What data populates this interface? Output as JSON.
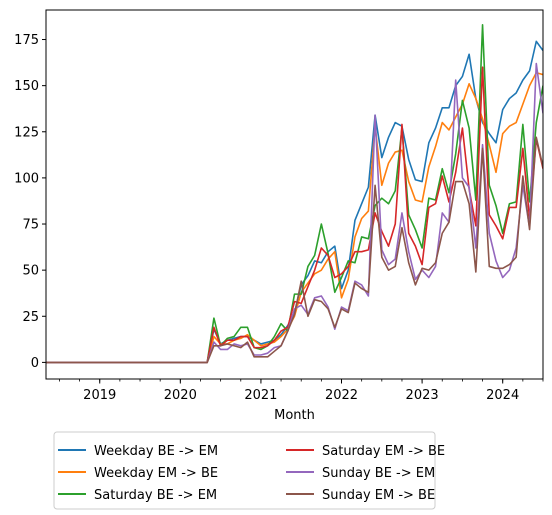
{
  "chart_data": {
    "type": "line",
    "xlabel": "Month",
    "ylabel": "",
    "title": "",
    "xlim": [
      "2018-05",
      "2024-07"
    ],
    "ylim": [
      -9,
      191
    ],
    "x_ticks": [
      "2019",
      "2020",
      "2021",
      "2022",
      "2023",
      "2024"
    ],
    "y_ticks": [
      0,
      25,
      50,
      75,
      100,
      125,
      150,
      175
    ],
    "grid": false,
    "legend_position": "below the plot, two columns",
    "x": [
      "2018-05",
      "2018-06",
      "2018-07",
      "2018-08",
      "2018-09",
      "2018-10",
      "2018-11",
      "2018-12",
      "2019-01",
      "2019-02",
      "2019-03",
      "2019-04",
      "2019-05",
      "2019-06",
      "2019-07",
      "2019-08",
      "2019-09",
      "2019-10",
      "2019-11",
      "2019-12",
      "2020-01",
      "2020-02",
      "2020-03",
      "2020-04",
      "2020-05",
      "2020-06",
      "2020-07",
      "2020-08",
      "2020-09",
      "2020-10",
      "2020-11",
      "2020-12",
      "2021-01",
      "2021-02",
      "2021-03",
      "2021-04",
      "2021-05",
      "2021-06",
      "2021-07",
      "2021-08",
      "2021-09",
      "2021-10",
      "2021-11",
      "2021-12",
      "2022-01",
      "2022-02",
      "2022-03",
      "2022-04",
      "2022-05",
      "2022-06",
      "2022-07",
      "2022-08",
      "2022-09",
      "2022-10",
      "2022-11",
      "2022-12",
      "2023-01",
      "2023-02",
      "2023-03",
      "2023-04",
      "2023-05",
      "2023-06",
      "2023-07",
      "2023-08",
      "2023-09",
      "2023-10",
      "2023-11",
      "2023-12",
      "2024-01",
      "2024-02",
      "2024-03",
      "2024-04",
      "2024-05",
      "2024-06",
      "2024-07"
    ],
    "series": [
      {
        "name": "Weekday BE -> EM",
        "color": "#1f77b4",
        "values": [
          0,
          0,
          0,
          0,
          0,
          0,
          0,
          0,
          0,
          0,
          0,
          0,
          0,
          0,
          0,
          0,
          0,
          0,
          0,
          0,
          0,
          0,
          0,
          0,
          0,
          18,
          10,
          12,
          13,
          14,
          14,
          12,
          10,
          11,
          12,
          15,
          20,
          27,
          42,
          47,
          55,
          54,
          60,
          63,
          40,
          50,
          77,
          86,
          95,
          134,
          111,
          122,
          130,
          128,
          110,
          99,
          98,
          119,
          127,
          138,
          138,
          150,
          155,
          167,
          143,
          130,
          124,
          119,
          137,
          143,
          146,
          153,
          158,
          174,
          169
        ]
      },
      {
        "name": "Weekday EM -> BE",
        "color": "#ff7f0e",
        "values": [
          0,
          0,
          0,
          0,
          0,
          0,
          0,
          0,
          0,
          0,
          0,
          0,
          0,
          0,
          0,
          0,
          0,
          0,
          0,
          0,
          0,
          0,
          0,
          0,
          0,
          14,
          10,
          10,
          12,
          13,
          15,
          12,
          9,
          10,
          11,
          14,
          18,
          25,
          38,
          43,
          48,
          50,
          56,
          60,
          35,
          45,
          68,
          78,
          82,
          128,
          96,
          108,
          114,
          115,
          98,
          88,
          87,
          106,
          117,
          130,
          126,
          133,
          140,
          151,
          143,
          132,
          118,
          103,
          124,
          128,
          130,
          140,
          150,
          157,
          156
        ]
      },
      {
        "name": "Saturday BE -> EM",
        "color": "#2ca02c",
        "values": [
          0,
          0,
          0,
          0,
          0,
          0,
          0,
          0,
          0,
          0,
          0,
          0,
          0,
          0,
          0,
          0,
          0,
          0,
          0,
          0,
          0,
          0,
          0,
          0,
          0,
          24,
          9,
          13,
          14,
          19,
          19,
          8,
          7,
          9,
          14,
          21,
          17,
          37,
          37,
          52,
          58,
          75,
          59,
          38,
          46,
          55,
          54,
          68,
          67,
          85,
          89,
          86,
          93,
          127,
          80,
          72,
          62,
          89,
          88,
          105,
          92,
          113,
          142,
          127,
          88,
          183,
          96,
          85,
          70,
          86,
          87,
          129,
          87,
          130,
          150
        ]
      },
      {
        "name": "Saturday EM -> BE",
        "color": "#d62728",
        "values": [
          0,
          0,
          0,
          0,
          0,
          0,
          0,
          0,
          0,
          0,
          0,
          0,
          0,
          0,
          0,
          0,
          0,
          0,
          0,
          0,
          0,
          0,
          0,
          0,
          0,
          19,
          9,
          12,
          12,
          14,
          14,
          8,
          8,
          9,
          12,
          17,
          19,
          33,
          32,
          41,
          50,
          62,
          58,
          46,
          48,
          52,
          60,
          60,
          61,
          81,
          71,
          63,
          75,
          129,
          70,
          63,
          53,
          84,
          86,
          101,
          87,
          103,
          127,
          94,
          74,
          160,
          80,
          74,
          67,
          84,
          84,
          116,
          78,
          121,
          105
        ]
      },
      {
        "name": "Sunday BE -> EM",
        "color": "#9467bd",
        "values": [
          0,
          0,
          0,
          0,
          0,
          0,
          0,
          0,
          0,
          0,
          0,
          0,
          0,
          0,
          0,
          0,
          0,
          0,
          0,
          0,
          0,
          0,
          0,
          0,
          0,
          11,
          7,
          7,
          10,
          9,
          10,
          4,
          4,
          5,
          8,
          9,
          17,
          29,
          31,
          26,
          35,
          36,
          30,
          18,
          30,
          28,
          44,
          42,
          36,
          134,
          61,
          53,
          56,
          81,
          60,
          45,
          50,
          46,
          52,
          81,
          76,
          153,
          100,
          95,
          62,
          118,
          70,
          55,
          46,
          50,
          62,
          96,
          73,
          162,
          135
        ]
      },
      {
        "name": "Sunday EM -> BE",
        "color": "#8c564b",
        "values": [
          0,
          0,
          0,
          0,
          0,
          0,
          0,
          0,
          0,
          0,
          0,
          0,
          0,
          0,
          0,
          0,
          0,
          0,
          0,
          0,
          0,
          0,
          0,
          0,
          0,
          9,
          9,
          10,
          9,
          8,
          11,
          3,
          3,
          3,
          6,
          9,
          17,
          26,
          44,
          25,
          34,
          33,
          29,
          19,
          29,
          27,
          43,
          40,
          38,
          96,
          57,
          50,
          52,
          73,
          54,
          42,
          51,
          50,
          54,
          70,
          76,
          98,
          98,
          86,
          49,
          116,
          52,
          51,
          51,
          53,
          57,
          101,
          72,
          122,
          106
        ]
      }
    ]
  }
}
